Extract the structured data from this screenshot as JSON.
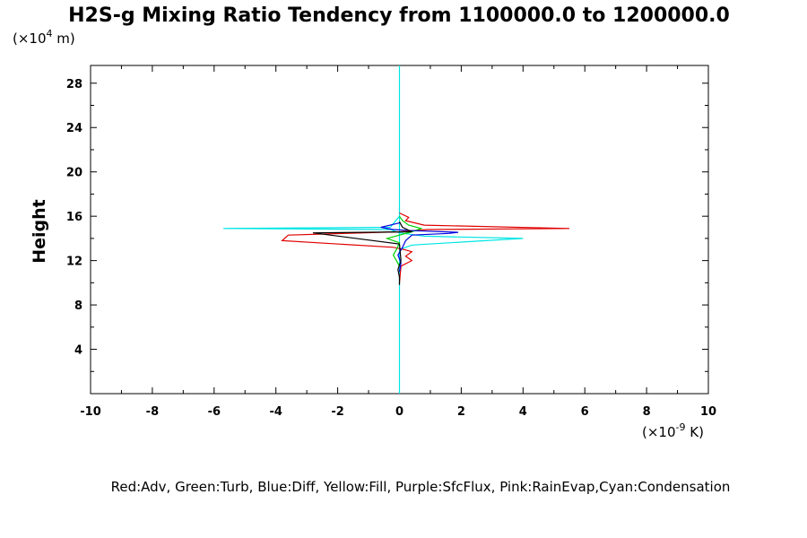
{
  "chart_data": {
    "type": "line",
    "title": "H2S-g Mixing Ratio Tendency from 1100000.0 to 1200000.0",
    "xlabel": "",
    "ylabel": "Height",
    "x_unit_label": "(×10",
    "x_unit_exp": "-9",
    "x_unit_suffix": " K)",
    "y_unit_label": "(×10",
    "y_unit_exp": "4",
    "y_unit_suffix": " m)",
    "xlim": [
      -10,
      10
    ],
    "ylim": [
      0,
      29.6
    ],
    "x_ticks": [
      -10,
      -8,
      -6,
      -4,
      -2,
      0,
      2,
      4,
      6,
      8,
      10
    ],
    "x_tick_labels": [
      "-10",
      "-8",
      "-6",
      "-4",
      "-2",
      "0",
      "2",
      "4",
      "6",
      "8",
      "10"
    ],
    "y_ticks": [
      4,
      8,
      12,
      16,
      20,
      24,
      28
    ],
    "y_tick_labels": [
      "4",
      "8",
      "12",
      "16",
      "20",
      "24",
      "28"
    ],
    "grid": false,
    "legend_text": "Red:Adv, Green:Turb, Blue:Diff, Yellow:Fill, Purple:SfcFlux, Pink:RainEvap,Cyan:Condensation",
    "legend_placement": "bottom",
    "series": [
      {
        "color": "#00e5e5",
        "x": [
          0,
          0,
          0,
          0,
          0,
          -0.3,
          -5.7,
          -0.3,
          0,
          0.8,
          4.0,
          0.4,
          0,
          0,
          0,
          0,
          0
        ],
        "y": [
          0,
          10,
          13,
          15.2,
          16.0,
          15.0,
          14.9,
          14.8,
          14.5,
          14.2,
          14.0,
          13.4,
          13.0,
          11,
          10,
          5,
          29.6
        ]
      },
      {
        "color": "#e00000",
        "x": [
          0,
          0.05,
          0.4,
          0.2,
          0.4,
          0.15,
          -0.2,
          -3.8,
          -3.6,
          0,
          0.9,
          5.5,
          0.8,
          0.2,
          0.3,
          0
        ],
        "y": [
          10.0,
          11.5,
          12.0,
          12.4,
          12.8,
          13.0,
          13.2,
          13.8,
          14.3,
          14.6,
          14.8,
          14.9,
          15.2,
          15.6,
          15.9,
          16.3
        ]
      },
      {
        "color": "#00d000",
        "x": [
          0,
          -0.1,
          -0.2,
          -0.1,
          0,
          -0.4,
          0,
          0.4,
          0.7,
          0.3,
          0.1,
          0
        ],
        "y": [
          11.5,
          12.0,
          12.5,
          13.0,
          13.6,
          14.0,
          14.3,
          14.6,
          14.9,
          15.2,
          15.6,
          16.0
        ]
      },
      {
        "color": "#0000e0",
        "x": [
          0,
          0.05,
          -0.05,
          0.1,
          0.2,
          0.4,
          1.6,
          1.9,
          0.4,
          -0.2,
          -0.6,
          -0.3,
          0
        ],
        "y": [
          11.0,
          11.8,
          12.5,
          13.2,
          13.8,
          14.3,
          14.45,
          14.55,
          14.7,
          14.8,
          15.0,
          15.2,
          15.4
        ]
      },
      {
        "color": "#000000",
        "x": [
          0,
          0,
          -0.05,
          0.05,
          0,
          -2.8,
          0.4,
          0.1,
          0
        ],
        "y": [
          9.8,
          10.5,
          11.2,
          12.0,
          13.5,
          14.5,
          14.6,
          15.0,
          15.5
        ]
      }
    ]
  }
}
